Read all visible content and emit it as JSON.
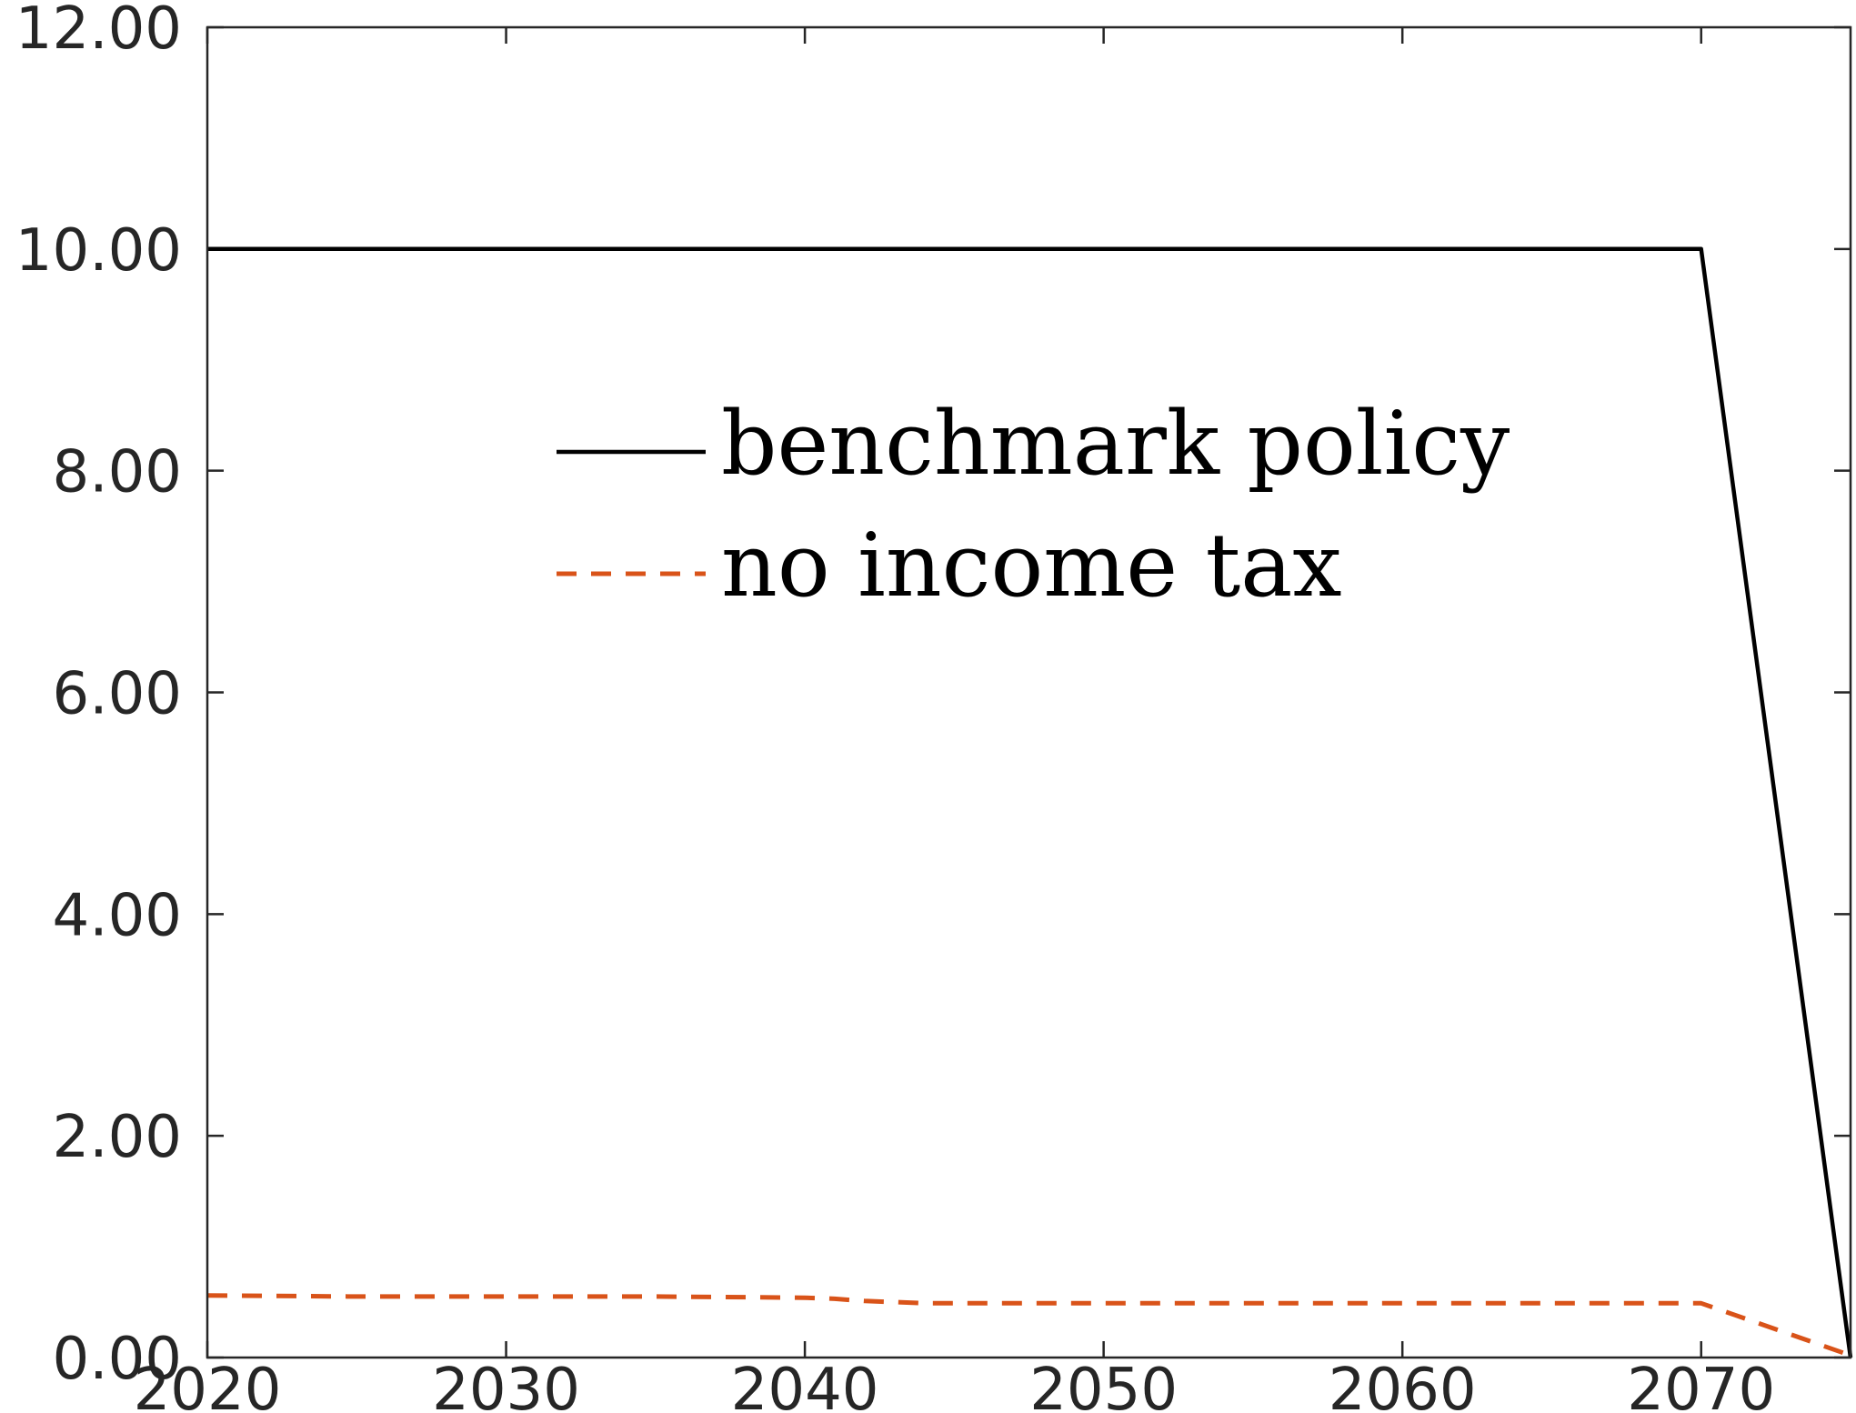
{
  "chart_data": {
    "type": "line",
    "title": "",
    "xlabel": "",
    "ylabel": "",
    "xlim": [
      2020,
      2075
    ],
    "ylim": [
      0,
      12
    ],
    "xticks": [
      2020,
      2030,
      2040,
      2050,
      2060,
      2070
    ],
    "xtick_labels": [
      "2020",
      "2030",
      "2040",
      "2050",
      "2060",
      "2070"
    ],
    "yticks": [
      0,
      2,
      4,
      6,
      8,
      10,
      12
    ],
    "ytick_labels": [
      "0.00",
      "2.00",
      "4.00",
      "6.00",
      "8.00",
      "10.00",
      "12.00"
    ],
    "grid": false,
    "legend_position": "upper-center",
    "series": [
      {
        "name": "benchmark policy",
        "color": "#000000",
        "style": "solid",
        "x": [
          2020,
          2030,
          2040,
          2050,
          2060,
          2070,
          2075
        ],
        "y": [
          10.0,
          10.0,
          10.0,
          10.0,
          10.0,
          10.0,
          0.0
        ]
      },
      {
        "name": "no income tax",
        "color": "#D95319",
        "style": "dashed",
        "x": [
          2020,
          2025,
          2030,
          2035,
          2040,
          2041,
          2042,
          2043,
          2044,
          2045,
          2050,
          2055,
          2060,
          2065,
          2070,
          2075
        ],
        "y": [
          0.56,
          0.55,
          0.55,
          0.55,
          0.54,
          0.53,
          0.51,
          0.5,
          0.49,
          0.49,
          0.49,
          0.49,
          0.49,
          0.49,
          0.49,
          0.02
        ]
      }
    ]
  }
}
